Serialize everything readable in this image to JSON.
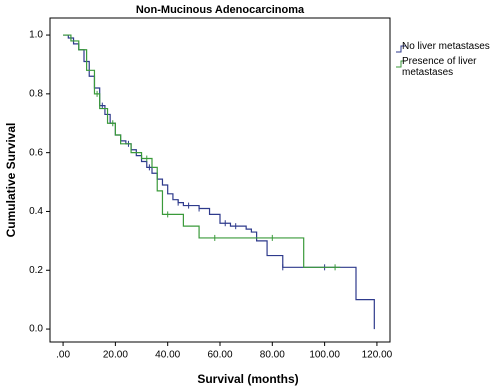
{
  "chart_data": {
    "type": "step",
    "title": "Non-Mucinous Adenocarcinoma",
    "xlabel": "Survival (months)",
    "ylabel": "Cumulative Survival",
    "xlim": [
      -5,
      125
    ],
    "ylim": [
      -0.044,
      1.058
    ],
    "xticks": [
      {
        "value": 0,
        "label": ".00"
      },
      {
        "value": 20,
        "label": "20.00"
      },
      {
        "value": 40,
        "label": "40.00"
      },
      {
        "value": 60,
        "label": "60.00"
      },
      {
        "value": 80,
        "label": "80.00"
      },
      {
        "value": 100,
        "label": "100.00"
      },
      {
        "value": 120,
        "label": "120.00"
      }
    ],
    "yticks": [
      {
        "value": 0,
        "label": "0.0"
      },
      0.2,
      0.4,
      0.6,
      0.8,
      {
        "value": 1,
        "label": "1.0"
      }
    ],
    "series": [
      {
        "name": "No liver metastases",
        "color": "#2e3a8c",
        "x": [
          0,
          2,
          4,
          6,
          8,
          10,
          12,
          14,
          16,
          18,
          20,
          22,
          24,
          26,
          28,
          30,
          32,
          34,
          36,
          38,
          40,
          42,
          44,
          46,
          52,
          56,
          60,
          64,
          70,
          72,
          74,
          78,
          84,
          112,
          119
        ],
        "values": [
          1,
          0.99,
          0.97,
          0.95,
          0.91,
          0.86,
          0.82,
          0.76,
          0.73,
          0.7,
          0.66,
          0.64,
          0.63,
          0.61,
          0.59,
          0.57,
          0.55,
          0.53,
          0.51,
          0.49,
          0.46,
          0.44,
          0.43,
          0.42,
          0.41,
          0.39,
          0.36,
          0.35,
          0.34,
          0.33,
          0.3,
          0.25,
          0.21,
          0.1,
          0
        ],
        "censored": [
          15,
          25,
          33,
          44,
          48,
          52,
          62,
          66,
          84,
          100
        ]
      },
      {
        "name": "Presence of liver metastases",
        "color": "#3a9a3a",
        "x": [
          0,
          3,
          6,
          9,
          12,
          14,
          17,
          20,
          22,
          26,
          30,
          34,
          36,
          38,
          46,
          52,
          92,
          106
        ],
        "values": [
          1,
          0.98,
          0.95,
          0.88,
          0.8,
          0.75,
          0.7,
          0.66,
          0.63,
          0.6,
          0.58,
          0.55,
          0.47,
          0.39,
          0.35,
          0.31,
          0.21,
          0.21
        ],
        "censored": [
          13,
          19,
          32,
          40,
          58,
          80,
          104
        ]
      }
    ]
  }
}
